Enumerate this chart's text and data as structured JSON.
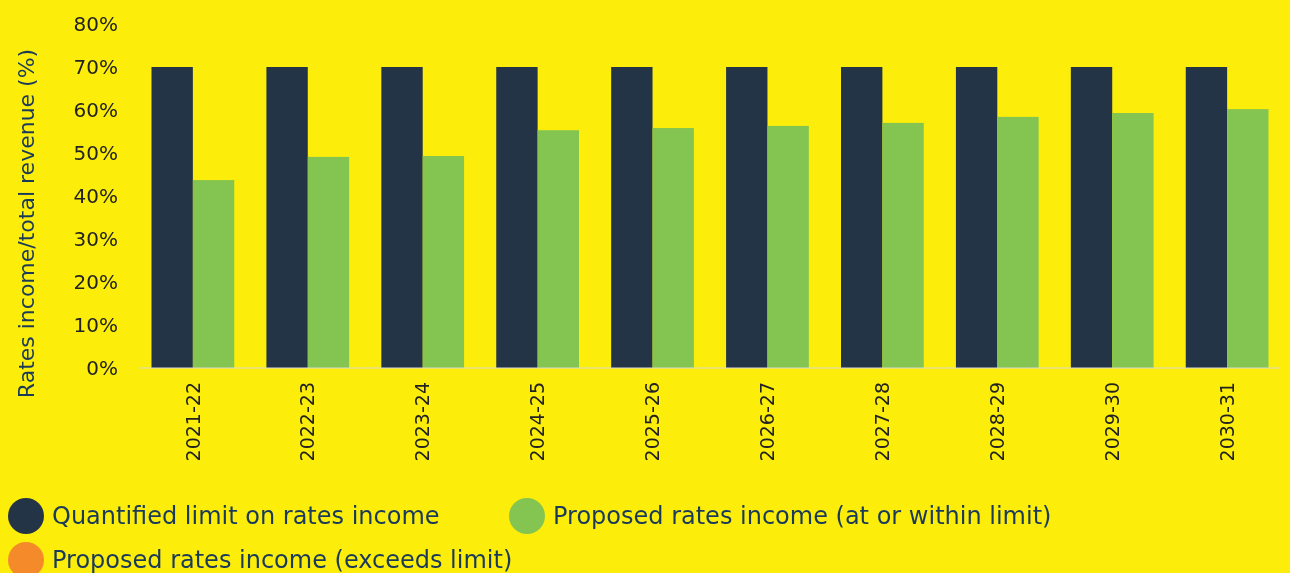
{
  "chart_data": {
    "type": "bar",
    "ylabel": "Rates income/total revenue (%)",
    "categories": [
      "2021-22",
      "2022-23",
      "2023-24",
      "2024-25",
      "2025-26",
      "2026-27",
      "2027-28",
      "2028-29",
      "2029-30",
      "2030-31"
    ],
    "series": [
      {
        "name": "Quantified limit on rates income",
        "color": "#243447",
        "values": [
          70,
          70,
          70,
          70,
          70,
          70,
          70,
          70,
          70,
          70
        ]
      },
      {
        "name": "Proposed rates income (at or within limit)",
        "color": "#84c450",
        "values": [
          43.7,
          49.1,
          49.3,
          55.3,
          55.8,
          56.3,
          57.0,
          58.4,
          59.3,
          60.2
        ]
      },
      {
        "name": "Proposed rates income (exceeds limit)",
        "color": "#f58a2a",
        "values": [
          null,
          null,
          null,
          null,
          null,
          null,
          null,
          null,
          null,
          null
        ]
      }
    ],
    "ylim": [
      0,
      80
    ],
    "yticks": [
      {
        "value": 0,
        "label": "0%"
      },
      {
        "value": 10,
        "label": "10%"
      },
      {
        "value": 20,
        "label": "20%"
      },
      {
        "value": 30,
        "label": "30%"
      },
      {
        "value": 40,
        "label": "40%"
      },
      {
        "value": 50,
        "label": "50%"
      },
      {
        "value": 60,
        "label": "60%"
      },
      {
        "value": 70,
        "label": "70%"
      },
      {
        "value": 80,
        "label": "80%"
      }
    ],
    "legend": "bottom"
  }
}
